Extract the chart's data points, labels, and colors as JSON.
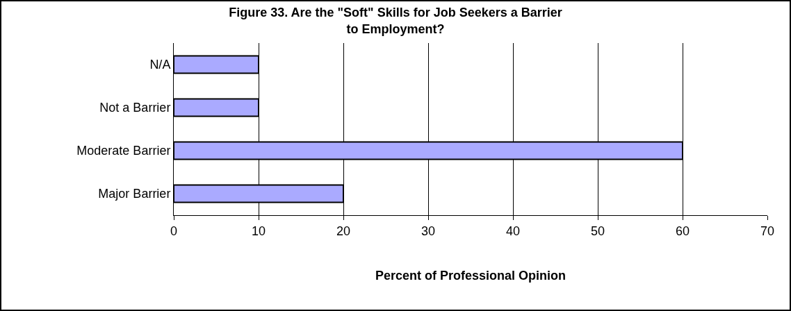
{
  "chart_data": {
    "type": "bar",
    "orientation": "horizontal",
    "title": "Figure 33. Are the \"Soft\" Skills for Job Seekers a Barrier\nto Employment?",
    "xlabel": "Percent of Professional Opinion",
    "categories": [
      "N/A",
      "Not a Barrier",
      "Moderate Barrier",
      "Major Barrier"
    ],
    "values": [
      10,
      10,
      60,
      20
    ],
    "color": "#aaaaff",
    "xlim": [
      0,
      70
    ],
    "xticks": [
      0,
      10,
      20,
      30,
      40,
      50,
      60,
      70
    ],
    "grid": "x"
  }
}
